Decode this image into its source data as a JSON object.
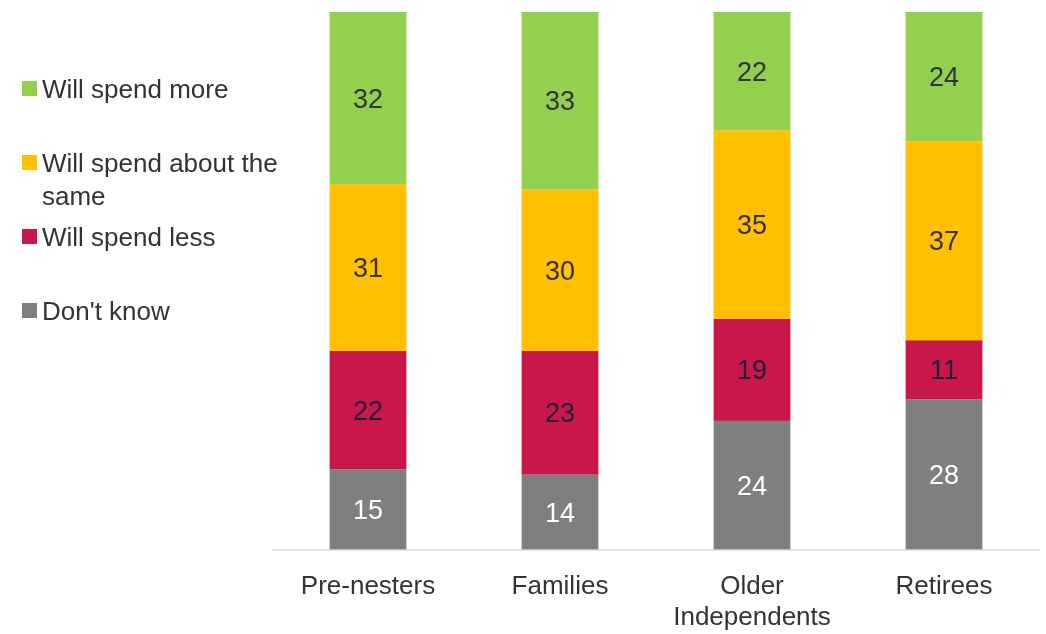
{
  "chart_data": {
    "type": "bar",
    "stacked": true,
    "categories": [
      "Pre-nesters",
      "Families",
      "Older Independents",
      "Retirees"
    ],
    "series": [
      {
        "name": "Don't know",
        "color": "#7f7f7f",
        "values": [
          15,
          14,
          24,
          28
        ]
      },
      {
        "name": "Will spend less",
        "color": "#c8184a",
        "values": [
          22,
          23,
          19,
          11
        ]
      },
      {
        "name": "Will spend about the same",
        "color": "#ffc000",
        "values": [
          31,
          30,
          35,
          37
        ]
      },
      {
        "name": "Will spend more",
        "color": "#92d050",
        "values": [
          32,
          33,
          22,
          24
        ]
      }
    ],
    "data_labels": true,
    "legend": "left"
  }
}
